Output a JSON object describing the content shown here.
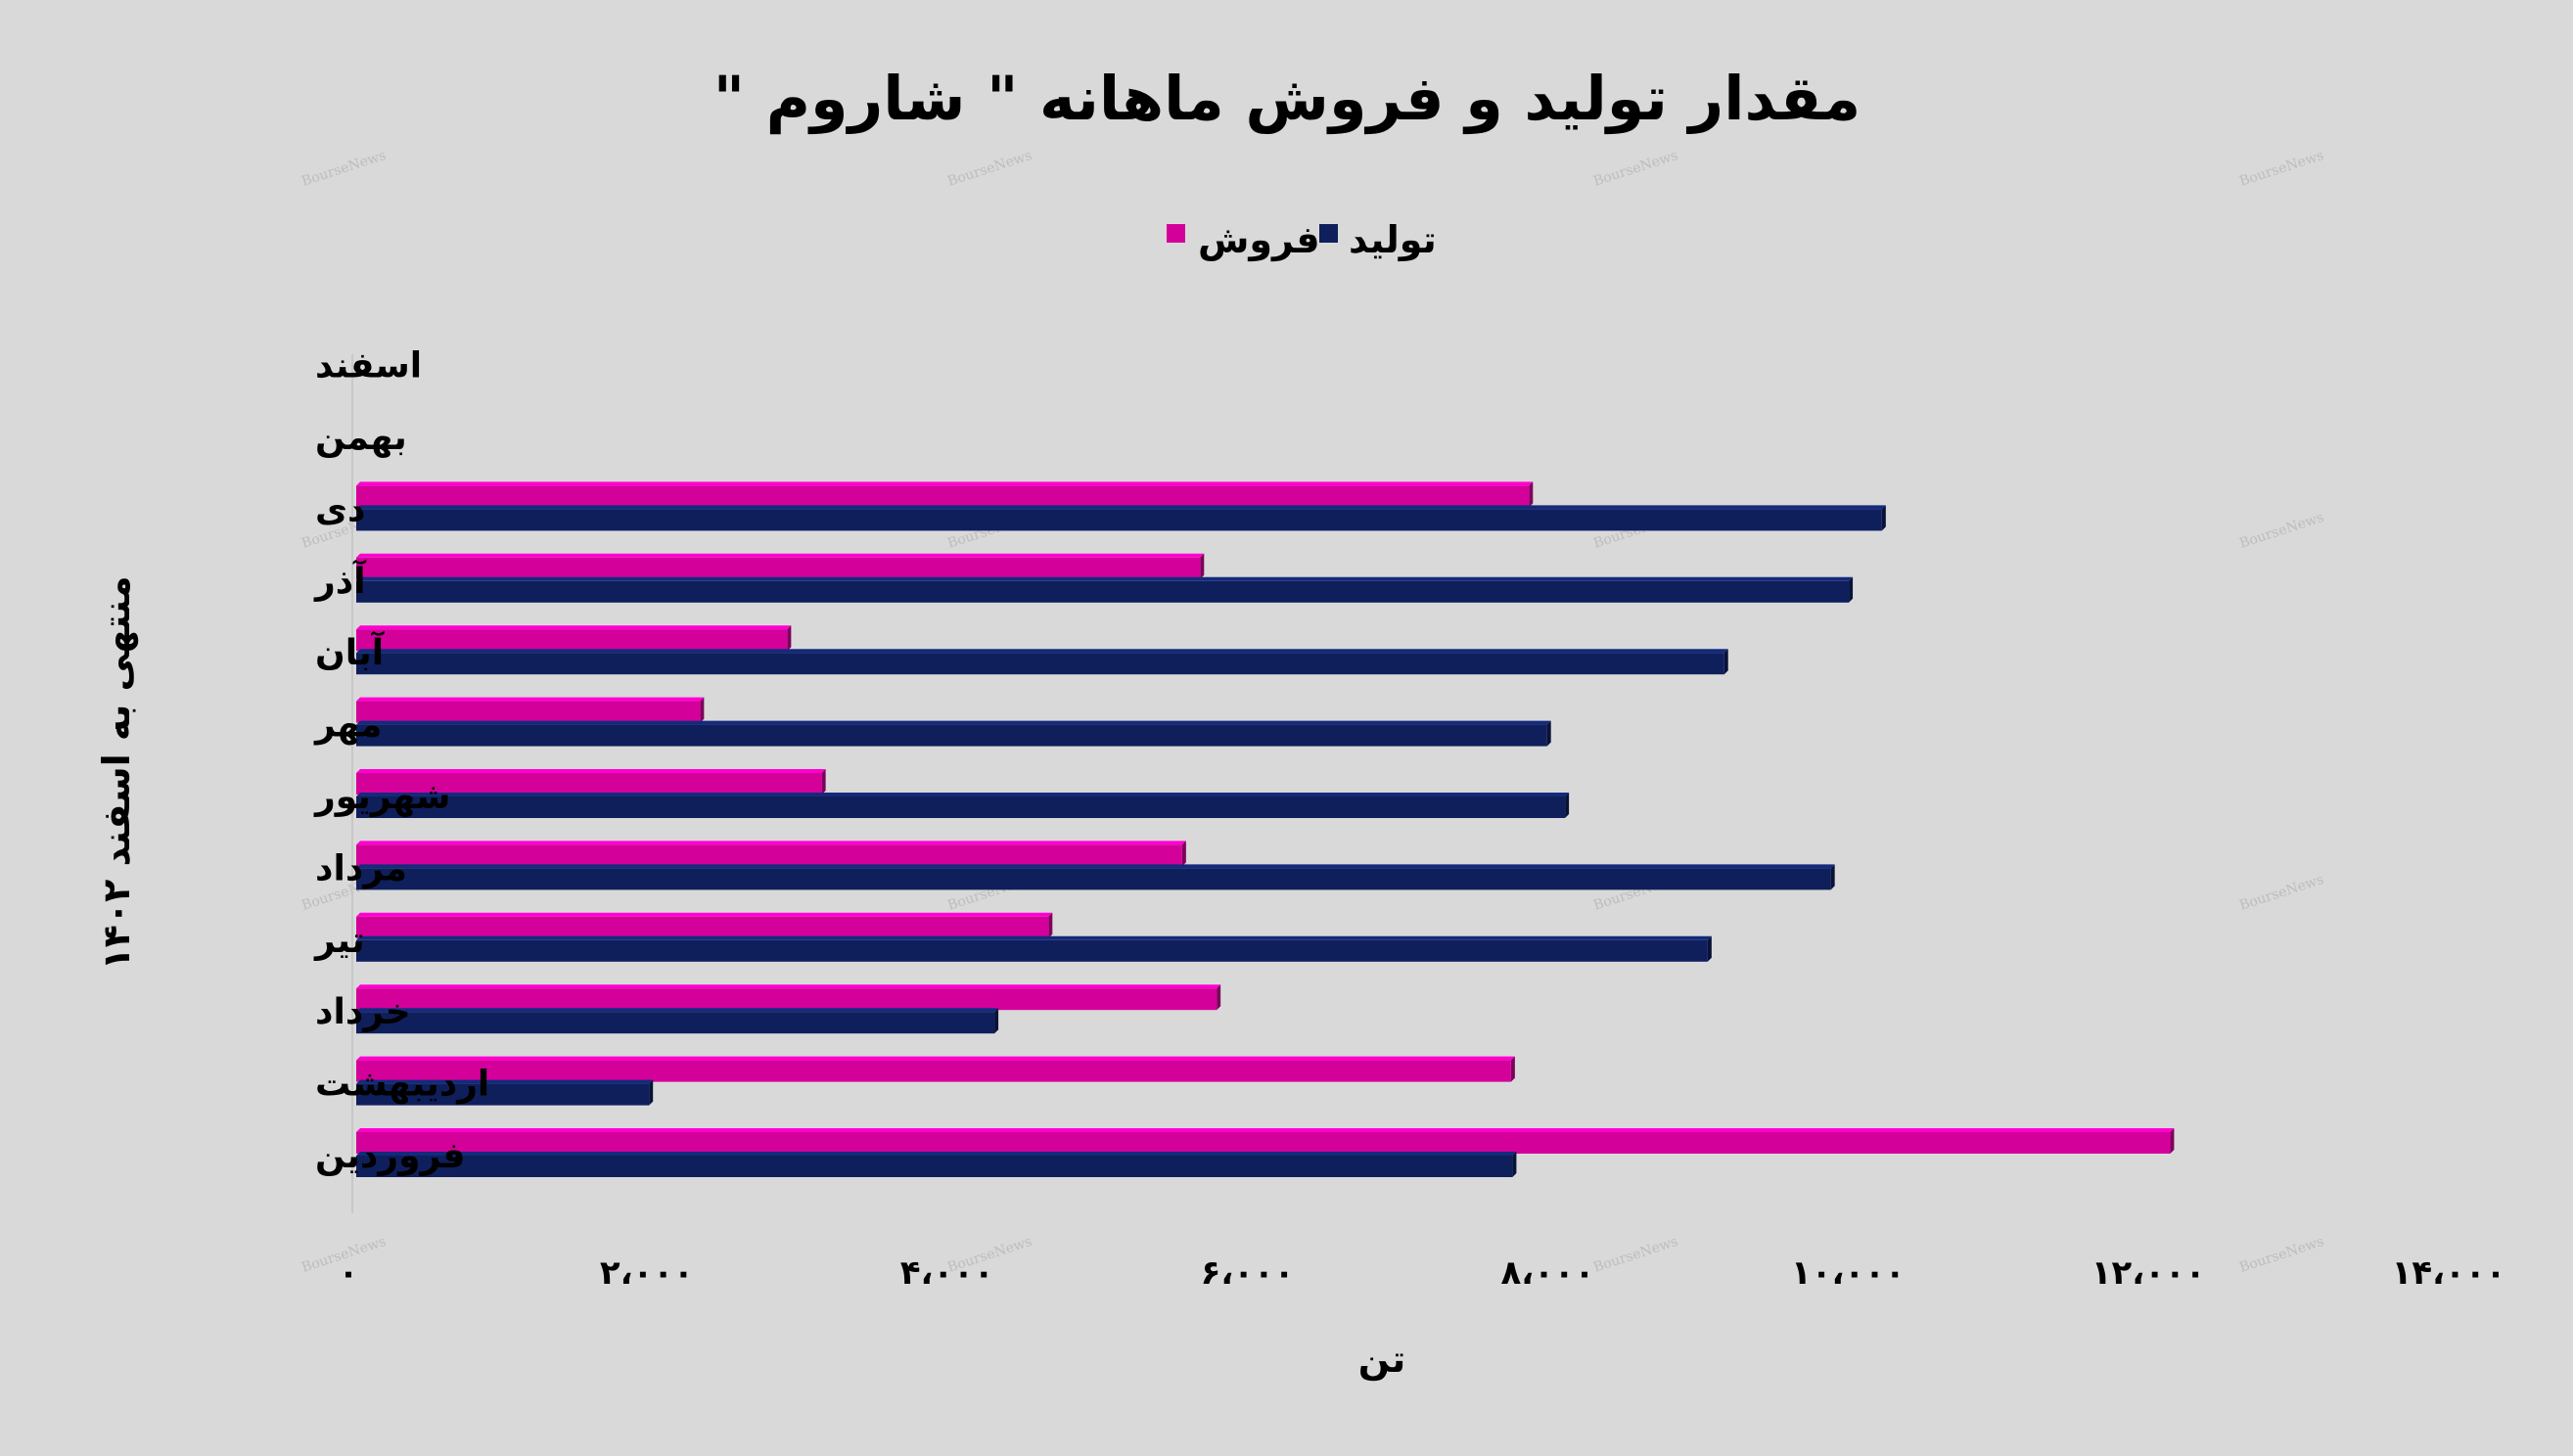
{
  "chart_data": {
    "type": "bar",
    "orientation": "horizontal",
    "title": "مقدار تولید و فروش ماهانه \" شاروم \"",
    "ylabel": "منتهی به اسفند ۱۴۰۲",
    "xlabel": "تن",
    "categories": [
      "فروردین",
      "اردیبهشت",
      "خرداد",
      "تیر",
      "مرداد",
      "شهریور",
      "مهر",
      "آبان",
      "آذر",
      "دی",
      "بهمن",
      "اسفند"
    ],
    "series": [
      {
        "name": "تولید",
        "color": "#0f1f5c",
        "values": [
          7700,
          1950,
          4250,
          9000,
          9820,
          8050,
          7930,
          9110,
          9940,
          10160,
          null,
          null
        ]
      },
      {
        "name": "فروش",
        "color": "#d4009a",
        "values": [
          12080,
          7690,
          5730,
          4610,
          5500,
          3100,
          2290,
          2870,
          5620,
          7810,
          null,
          null
        ]
      }
    ],
    "xlim": [
      0,
      14000
    ],
    "xticks": [
      0,
      2000,
      4000,
      6000,
      8000,
      10000,
      12000,
      14000
    ],
    "xtick_labels": [
      "۰",
      "۲،۰۰۰",
      "۴،۰۰۰",
      "۶،۰۰۰",
      "۸،۰۰۰",
      "۱۰،۰۰۰",
      "۱۲،۰۰۰",
      "۱۴،۰۰۰"
    ],
    "grid": false,
    "legend_position": "top-center",
    "watermark": "BourseNews"
  }
}
